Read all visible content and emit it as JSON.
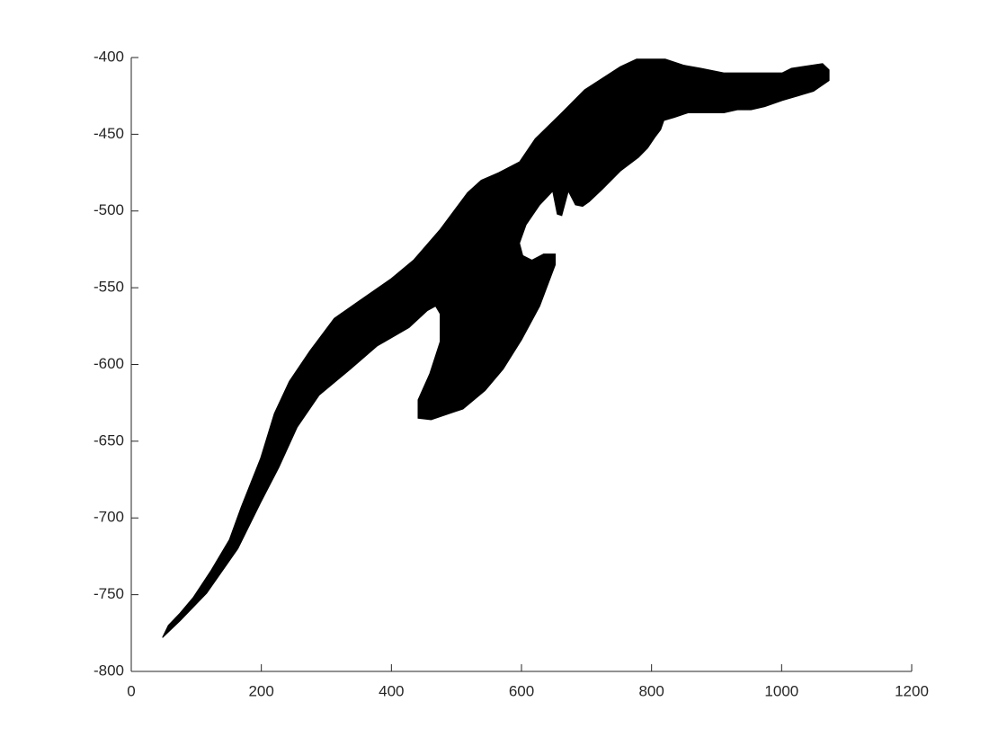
{
  "chart_data": {
    "type": "polygon",
    "color": "#000000",
    "x": [
      48,
      57,
      75,
      95,
      123,
      151,
      169,
      199,
      220,
      243,
      275,
      312,
      349,
      400,
      434,
      475,
      517,
      538,
      565,
      597,
      621,
      662,
      697,
      752,
      777,
      821,
      849,
      876,
      911,
      1001,
      1015,
      1063,
      1073,
      1073,
      1049,
      1001,
      974,
      953,
      932,
      911,
      856,
      835,
      819,
      814,
      805,
      794,
      780,
      752,
      724,
      704,
      694,
      683,
      672,
      662,
      655,
      648,
      628,
      607,
      597,
      602,
      616,
      634,
      652,
      652,
      628,
      600,
      572,
      544,
      510,
      461,
      441,
      441,
      459,
      475,
      475,
      468,
      455,
      427,
      378,
      337,
      289,
      255,
      227,
      199,
      164,
      116,
      75
    ],
    "y": [
      -778,
      -770,
      -762,
      -752,
      -734,
      -714,
      -693,
      -661,
      -632,
      -611,
      -591,
      -570,
      -559,
      -544,
      -532,
      -512,
      -488,
      -480,
      -475,
      -468,
      -453,
      -436,
      -421,
      -406,
      -401,
      -401,
      -405,
      -407,
      -410,
      -410,
      -407,
      -404,
      -408,
      -415,
      -422,
      -428,
      -432,
      -434,
      -434,
      -436,
      -436,
      -439,
      -441,
      -447,
      -452,
      -459,
      -465,
      -474,
      -486,
      -494,
      -497,
      -496,
      -487,
      -503,
      -502,
      -487,
      -496,
      -509,
      -521,
      -529,
      -532,
      -528,
      -528,
      -535,
      -562,
      -584,
      -603,
      -617,
      -629,
      -636,
      -635,
      -623,
      -606,
      -585,
      -567,
      -562,
      -565,
      -576,
      -588,
      -603,
      -620,
      -641,
      -667,
      -690,
      -720,
      -749,
      -767
    ],
    "xlim": [
      0,
      1200
    ],
    "xticks": [
      0,
      200,
      400,
      600,
      800,
      1000,
      1200
    ],
    "ylim": [
      -800,
      -400
    ],
    "yticks": [
      -800,
      -750,
      -700,
      -650,
      -600,
      -550,
      -500,
      -450,
      -400
    ]
  }
}
